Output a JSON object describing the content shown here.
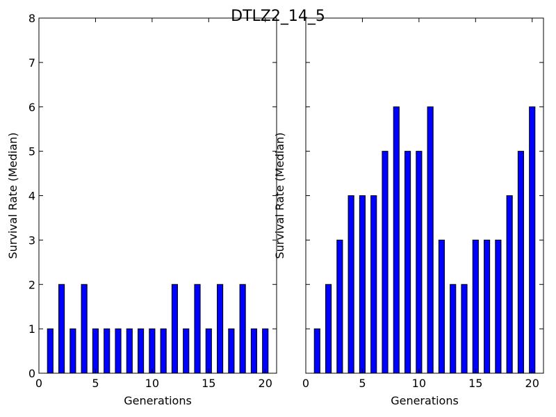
{
  "title": "DTLZ2_14_5",
  "chart_data": [
    {
      "type": "bar",
      "title": "DTLZ2_14_5",
      "xlabel": "Generations",
      "ylabel": "Survival Rate (Median)",
      "xlim": [
        0,
        21
      ],
      "ylim": [
        0,
        8
      ],
      "x_ticks": [
        0,
        5,
        10,
        15,
        20
      ],
      "y_ticks": [
        0,
        1,
        2,
        3,
        4,
        5,
        6,
        7,
        8
      ],
      "y_tick_labels_shown": true,
      "x": [
        1,
        2,
        3,
        4,
        5,
        6,
        7,
        8,
        9,
        10,
        11,
        12,
        13,
        14,
        15,
        16,
        17,
        18,
        19,
        20
      ],
      "values": [
        1,
        2,
        1,
        2,
        1,
        1,
        1,
        1,
        1,
        1,
        1,
        2,
        1,
        2,
        1,
        2,
        1,
        2,
        1,
        1
      ],
      "color": "#0000ff",
      "edgecolor": "#000000",
      "grid": false,
      "legend": "none"
    },
    {
      "type": "bar",
      "xlabel": "Generations",
      "ylabel": "Survival Rate (Median)",
      "xlim": [
        0,
        21
      ],
      "ylim": [
        0,
        8
      ],
      "x_ticks": [
        0,
        5,
        10,
        15,
        20
      ],
      "y_ticks": [
        0,
        1,
        2,
        3,
        4,
        5,
        6,
        7,
        8
      ],
      "y_tick_labels_shown": false,
      "x": [
        1,
        2,
        3,
        4,
        5,
        6,
        7,
        8,
        9,
        10,
        11,
        12,
        13,
        14,
        15,
        16,
        17,
        18,
        19,
        20
      ],
      "values": [
        1,
        2,
        3,
        4,
        4,
        4,
        5,
        6,
        5,
        5,
        6,
        3,
        2,
        2,
        3,
        3,
        3,
        4,
        5,
        6
      ],
      "color": "#0000ff",
      "edgecolor": "#000000",
      "grid": false,
      "legend": "none"
    }
  ]
}
